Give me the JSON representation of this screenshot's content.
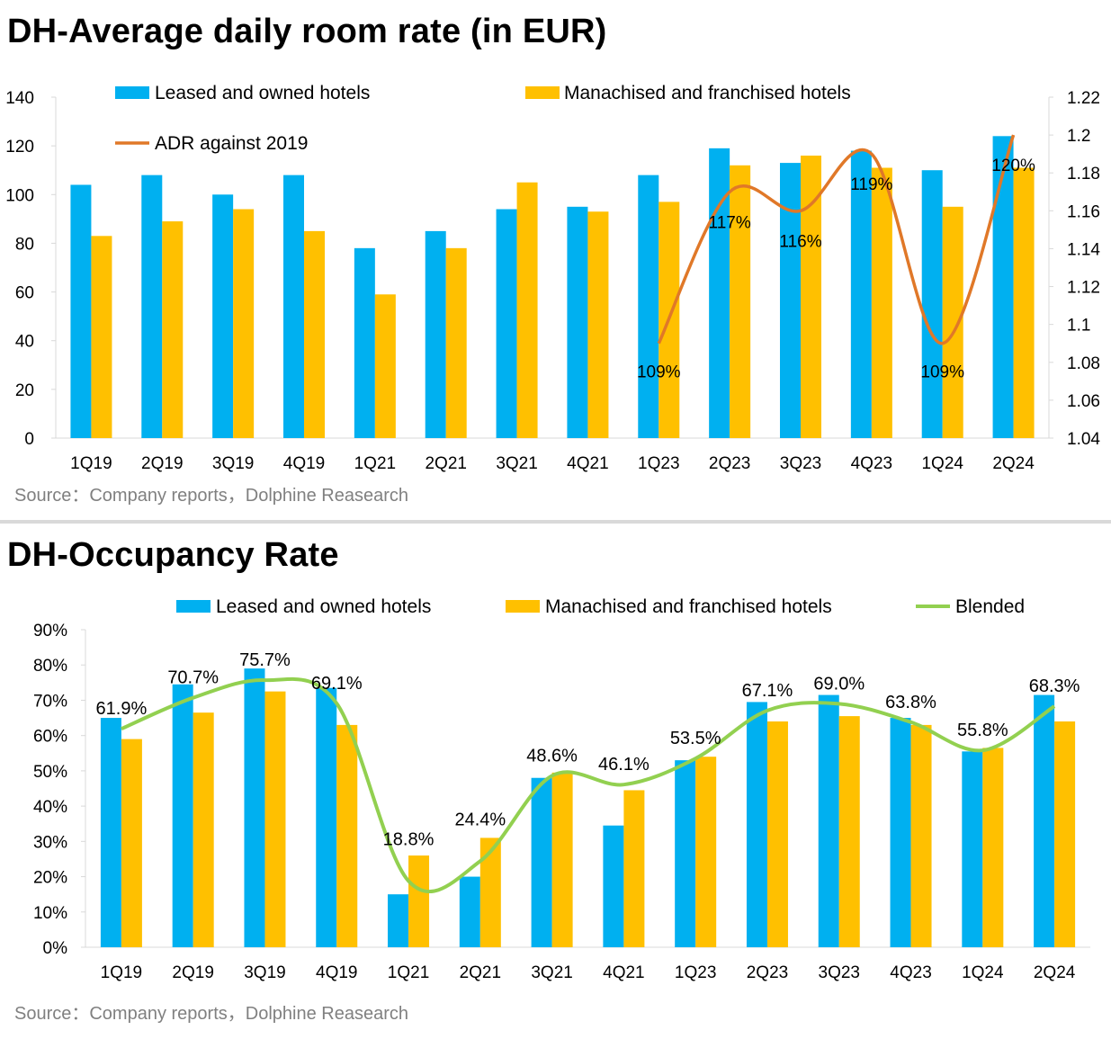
{
  "source_text": "Source：Company reports，Dolphine Reasearch",
  "colors": {
    "leased": "#00B0F0",
    "franchised": "#FFC000",
    "adr_line": "#E07828",
    "blended_line": "#92D050"
  },
  "chart_data": [
    {
      "type": "bar",
      "title": "DH-Average daily room rate (in EUR)",
      "categories": [
        "1Q19",
        "2Q19",
        "3Q19",
        "4Q19",
        "1Q21",
        "2Q21",
        "3Q21",
        "4Q21",
        "1Q23",
        "2Q23",
        "3Q23",
        "4Q23",
        "1Q24",
        "2Q24"
      ],
      "series": [
        {
          "name": "Leased and owned hotels",
          "type": "bar",
          "axis": "left",
          "values": [
            104,
            108,
            100,
            108,
            78,
            85,
            94,
            95,
            108,
            119,
            113,
            118,
            110,
            124
          ]
        },
        {
          "name": "Manachised and franchised hotels",
          "type": "bar",
          "axis": "left",
          "values": [
            83,
            89,
            94,
            85,
            59,
            78,
            105,
            93,
            97,
            112,
            116,
            111,
            95,
            111
          ]
        },
        {
          "name": "ADR against 2019",
          "type": "line",
          "axis": "right",
          "values": [
            null,
            null,
            null,
            null,
            null,
            null,
            null,
            null,
            1.09,
            1.17,
            1.16,
            1.19,
            1.09,
            1.2
          ],
          "labels": [
            "",
            "",
            "",
            "",
            "",
            "",
            "",
            "",
            "109%",
            "117%",
            "116%",
            "119%",
            "109%",
            "120%"
          ]
        }
      ],
      "y_left": {
        "min": 0,
        "max": 140,
        "ticks": [
          "0",
          "20",
          "40",
          "60",
          "80",
          "100",
          "120",
          "140"
        ]
      },
      "y_right": {
        "min": 1.04,
        "max": 1.22,
        "ticks": [
          "1.04",
          "1.06",
          "1.08",
          "1.1",
          "1.12",
          "1.14",
          "1.16",
          "1.18",
          "1.2",
          "1.22"
        ]
      },
      "legend": [
        "Leased and owned hotels",
        "Manachised and franchised hotels",
        "ADR against 2019"
      ],
      "legend_position": "top",
      "grid": false
    },
    {
      "type": "bar",
      "title": "DH-Occupancy Rate",
      "categories": [
        "1Q19",
        "2Q19",
        "3Q19",
        "4Q19",
        "1Q21",
        "2Q21",
        "3Q21",
        "4Q21",
        "1Q23",
        "2Q23",
        "3Q23",
        "4Q23",
        "1Q24",
        "2Q24"
      ],
      "series": [
        {
          "name": "Leased and owned hotels",
          "type": "bar",
          "values": [
            65,
            74.5,
            79,
            73.5,
            15,
            20,
            48,
            34.5,
            53,
            69.5,
            71.5,
            65,
            55.5,
            71.5
          ]
        },
        {
          "name": "Manachised and franchised hotels",
          "type": "bar",
          "values": [
            59,
            66.5,
            72.5,
            63,
            26,
            31,
            49.5,
            44.5,
            54,
            64,
            65.5,
            63,
            56.5,
            64
          ]
        },
        {
          "name": "Blended",
          "type": "line",
          "values": [
            61.9,
            70.7,
            75.7,
            69.1,
            18.8,
            24.4,
            48.6,
            46.1,
            53.5,
            67.1,
            69.0,
            63.8,
            55.8,
            68.3
          ],
          "labels": [
            "61.9%",
            "70.7%",
            "75.7%",
            "69.1%",
            "18.8%",
            "24.4%",
            "48.6%",
            "46.1%",
            "53.5%",
            "67.1%",
            "69.0%",
            "63.8%",
            "55.8%",
            "68.3%"
          ]
        }
      ],
      "y_axis": {
        "min": 0,
        "max": 90,
        "ticks": [
          "0%",
          "10%",
          "20%",
          "30%",
          "40%",
          "50%",
          "60%",
          "70%",
          "80%",
          "90%"
        ]
      },
      "legend": [
        "Leased and owned hotels",
        "Manachised and franchised hotels",
        "Blended"
      ],
      "legend_position": "top",
      "grid": false
    }
  ]
}
